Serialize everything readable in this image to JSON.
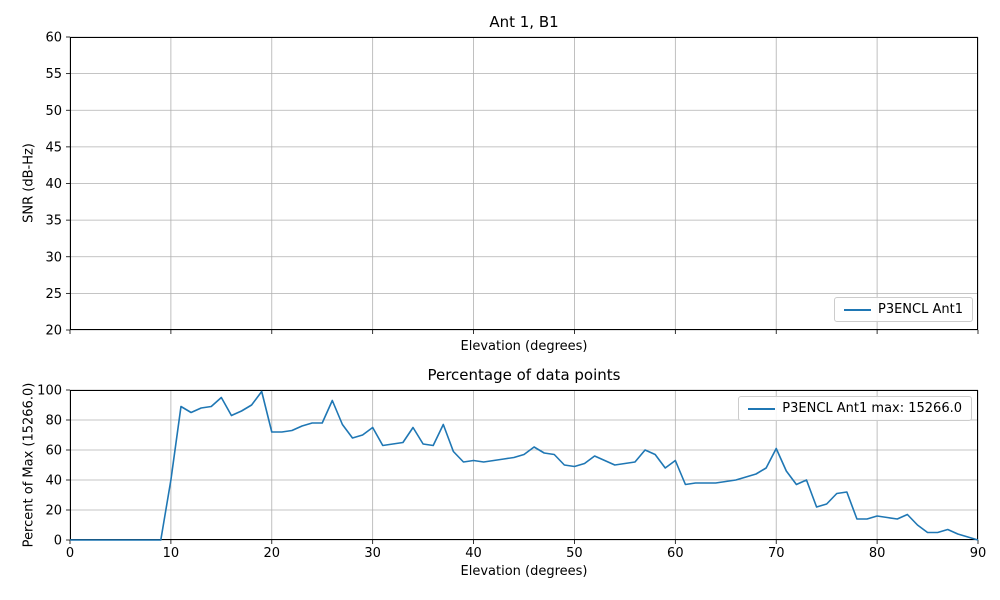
{
  "figure": {
    "background": "#ffffff",
    "line_color": "#1f77b4",
    "grid_color": "#b0b0b0",
    "spine_color": "#000000"
  },
  "chart_data": [
    {
      "type": "line",
      "title": "Ant 1, B1",
      "xlabel": "Elevation (degrees)",
      "ylabel": "SNR (dB-Hz)",
      "xlim": [
        0,
        90
      ],
      "ylim": [
        20,
        60
      ],
      "xticks": [
        0,
        10,
        20,
        30,
        40,
        50,
        60,
        70,
        80,
        90
      ],
      "xtick_labels": false,
      "yticks": [
        20,
        25,
        30,
        35,
        40,
        45,
        50,
        55,
        60
      ],
      "grid": true,
      "legend": {
        "position": "lower right",
        "entries": [
          {
            "label": "P3ENCL Ant1",
            "color": "#1f77b4"
          }
        ]
      },
      "series": []
    },
    {
      "type": "line",
      "title": "Percentage of data points",
      "xlabel": "Elevation (degrees)",
      "ylabel": "Percent of Max (15266.0)",
      "xlim": [
        0,
        90
      ],
      "ylim": [
        0,
        100
      ],
      "xticks": [
        0,
        10,
        20,
        30,
        40,
        50,
        60,
        70,
        80,
        90
      ],
      "xtick_labels": true,
      "yticks": [
        0,
        20,
        40,
        60,
        80,
        100
      ],
      "grid": true,
      "legend": {
        "position": "upper right",
        "entries": [
          {
            "label": "P3ENCL Ant1 max: 15266.0",
            "color": "#1f77b4"
          }
        ]
      },
      "series": [
        {
          "name": "P3ENCL Ant1",
          "color": "#1f77b4",
          "max_value": 15266.0,
          "x": [
            0,
            1,
            2,
            3,
            4,
            5,
            6,
            7,
            8,
            9,
            10,
            11,
            12,
            13,
            14,
            15,
            16,
            17,
            18,
            19,
            20,
            21,
            22,
            23,
            24,
            25,
            26,
            27,
            28,
            29,
            30,
            31,
            32,
            33,
            34,
            35,
            36,
            37,
            38,
            39,
            40,
            41,
            42,
            43,
            44,
            45,
            46,
            47,
            48,
            49,
            50,
            51,
            52,
            53,
            54,
            55,
            56,
            57,
            58,
            59,
            60,
            61,
            62,
            63,
            64,
            65,
            66,
            67,
            68,
            69,
            70,
            71,
            72,
            73,
            74,
            75,
            76,
            77,
            78,
            79,
            80,
            81,
            82,
            83,
            84,
            85,
            86,
            87,
            88,
            89,
            90
          ],
          "y": [
            0,
            0,
            0,
            0,
            0,
            0,
            0,
            0,
            0,
            0,
            40,
            89,
            85,
            88,
            89,
            95,
            83,
            86,
            90,
            99,
            72,
            72,
            73,
            76,
            78,
            78,
            93,
            77,
            68,
            70,
            75,
            63,
            64,
            65,
            75,
            64,
            63,
            77,
            59,
            52,
            53,
            52,
            53,
            54,
            55,
            57,
            62,
            58,
            57,
            50,
            49,
            51,
            56,
            53,
            50,
            51,
            52,
            60,
            57,
            48,
            53,
            37,
            38,
            38,
            38,
            39,
            40,
            42,
            44,
            48,
            61,
            46,
            37,
            40,
            22,
            24,
            31,
            32,
            14,
            14,
            16,
            15,
            14,
            17,
            10,
            5,
            5,
            7,
            4,
            2,
            0
          ]
        }
      ]
    }
  ]
}
